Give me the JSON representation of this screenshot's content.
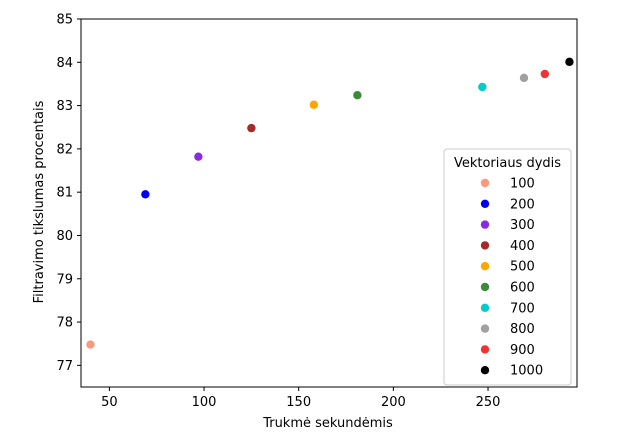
{
  "chart_data": {
    "type": "scatter",
    "xlabel": "Trukmė sekundėmis",
    "ylabel": "Filtravimo tikslumas procentais",
    "xlim": [
      35,
      297
    ],
    "ylim": [
      76.5,
      85
    ],
    "xticks": [
      50,
      100,
      150,
      200,
      250
    ],
    "yticks": [
      77,
      78,
      79,
      80,
      81,
      82,
      83,
      84,
      85
    ],
    "grid": false,
    "legend": {
      "title": "Vektoriaus dydis",
      "position": "lower-right"
    },
    "series": [
      {
        "name": "100",
        "color": "#fa9a7a",
        "x": 40,
        "y": 77.48
      },
      {
        "name": "200",
        "color": "#0000ee",
        "x": 69,
        "y": 80.95
      },
      {
        "name": "300",
        "color": "#8a2be2",
        "x": 97,
        "y": 81.82
      },
      {
        "name": "400",
        "color": "#a52a2a",
        "x": 125,
        "y": 82.48
      },
      {
        "name": "500",
        "color": "#ffa500",
        "x": 158,
        "y": 83.02
      },
      {
        "name": "600",
        "color": "#3a8a3a",
        "x": 181,
        "y": 83.24
      },
      {
        "name": "700",
        "color": "#00cccc",
        "x": 247,
        "y": 83.43
      },
      {
        "name": "800",
        "color": "#a0a0a0",
        "x": 269,
        "y": 83.64
      },
      {
        "name": "900",
        "color": "#ee3333",
        "x": 280,
        "y": 83.73
      },
      {
        "name": "1000",
        "color": "#000000",
        "x": 293,
        "y": 84.01
      }
    ]
  }
}
